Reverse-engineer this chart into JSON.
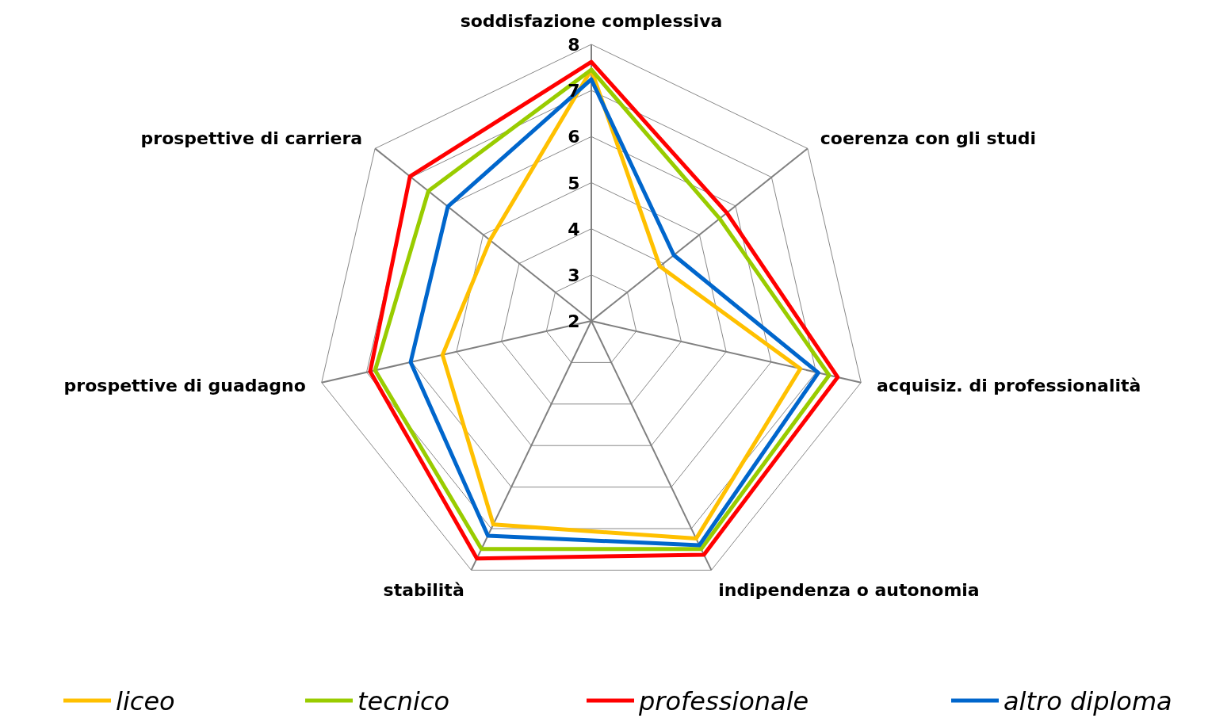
{
  "chart_data": {
    "type": "radar",
    "categories": [
      "soddisfazione complessiva",
      "coerenza con gli studi",
      "acquisiz. di professionalità",
      "indipendenza o autonomia",
      "stabilità",
      "prospettive di guadagno",
      "prospettive di carriera"
    ],
    "ylim": [
      2,
      8
    ],
    "yticks": [
      2,
      3,
      4,
      5,
      6,
      7,
      8
    ],
    "grid": true,
    "legend": "bottom",
    "marker": "none",
    "series": [
      {
        "name": "liceo",
        "color": "#ffc000",
        "values": [
          7.45,
          3.9,
          6.65,
          7.24,
          6.9,
          5.31,
          4.81
        ]
      },
      {
        "name": "tecnico",
        "color": "#99cc00",
        "values": [
          7.45,
          5.56,
          7.29,
          7.49,
          7.49,
          6.81,
          6.52
        ]
      },
      {
        "name": "professionale",
        "color": "#ff0000",
        "values": [
          7.62,
          5.76,
          7.48,
          7.63,
          7.72,
          6.92,
          7.03
        ]
      },
      {
        "name": "altro diploma",
        "color": "#0066cc",
        "values": [
          7.24,
          4.29,
          7.05,
          7.4,
          7.17,
          6.02,
          5.98
        ]
      }
    ]
  }
}
